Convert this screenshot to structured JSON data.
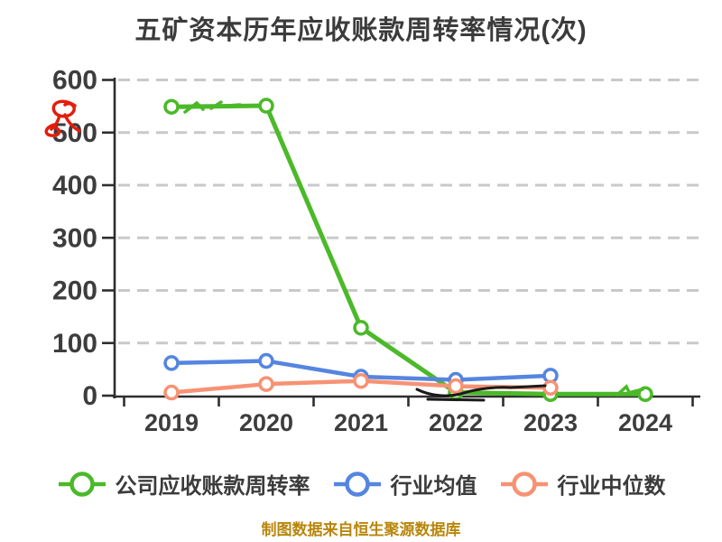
{
  "title": "五矿资本历年应收账款周转率情况(次)",
  "footer": "制图数据来自恒生聚源数据库",
  "colors": {
    "title_text": "#3b3b3b",
    "axis": "#2e2e2e",
    "tick_label": "#3d3d3d",
    "grid": "#c9c9c9",
    "footer_text": "#b8860b",
    "company": "#4bb929",
    "industry_avg": "#5585e0",
    "industry_median": "#f79274",
    "marker_fill": "#ffffff",
    "annotation_red": "#e51c0c",
    "annotation_black": "#1a1a1a"
  },
  "chart_data": {
    "type": "line",
    "title": "五矿资本历年应收账款周转率情况(次)",
    "xlabel": "",
    "ylabel": "",
    "x": [
      "2019",
      "2020",
      "2021",
      "2022",
      "2023",
      "2024"
    ],
    "y_ticks": [
      0,
      100,
      200,
      300,
      400,
      500,
      600
    ],
    "ylim": [
      0,
      600
    ],
    "grid": "dashed-horizontal",
    "legend_position": "bottom",
    "series": [
      {
        "name": "公司应收账款周转率",
        "color_key": "company",
        "values": [
          549,
          551,
          129,
          6,
          3,
          3
        ]
      },
      {
        "name": "行业均值",
        "color_key": "industry_avg",
        "values": [
          62,
          66,
          36,
          30,
          38,
          null
        ]
      },
      {
        "name": "行业中位数",
        "color_key": "industry_median",
        "values": [
          6,
          22,
          28,
          18,
          15,
          null
        ]
      }
    ]
  },
  "annotations": [
    {
      "id": "red-scribble-annotation",
      "color_key": "annotation_red"
    },
    {
      "id": "green-scribble-2019-2020",
      "color_key": "company"
    },
    {
      "id": "green-scribble-2024",
      "color_key": "company"
    },
    {
      "id": "black-scribble-2022-2023",
      "color_key": "annotation_black"
    }
  ]
}
